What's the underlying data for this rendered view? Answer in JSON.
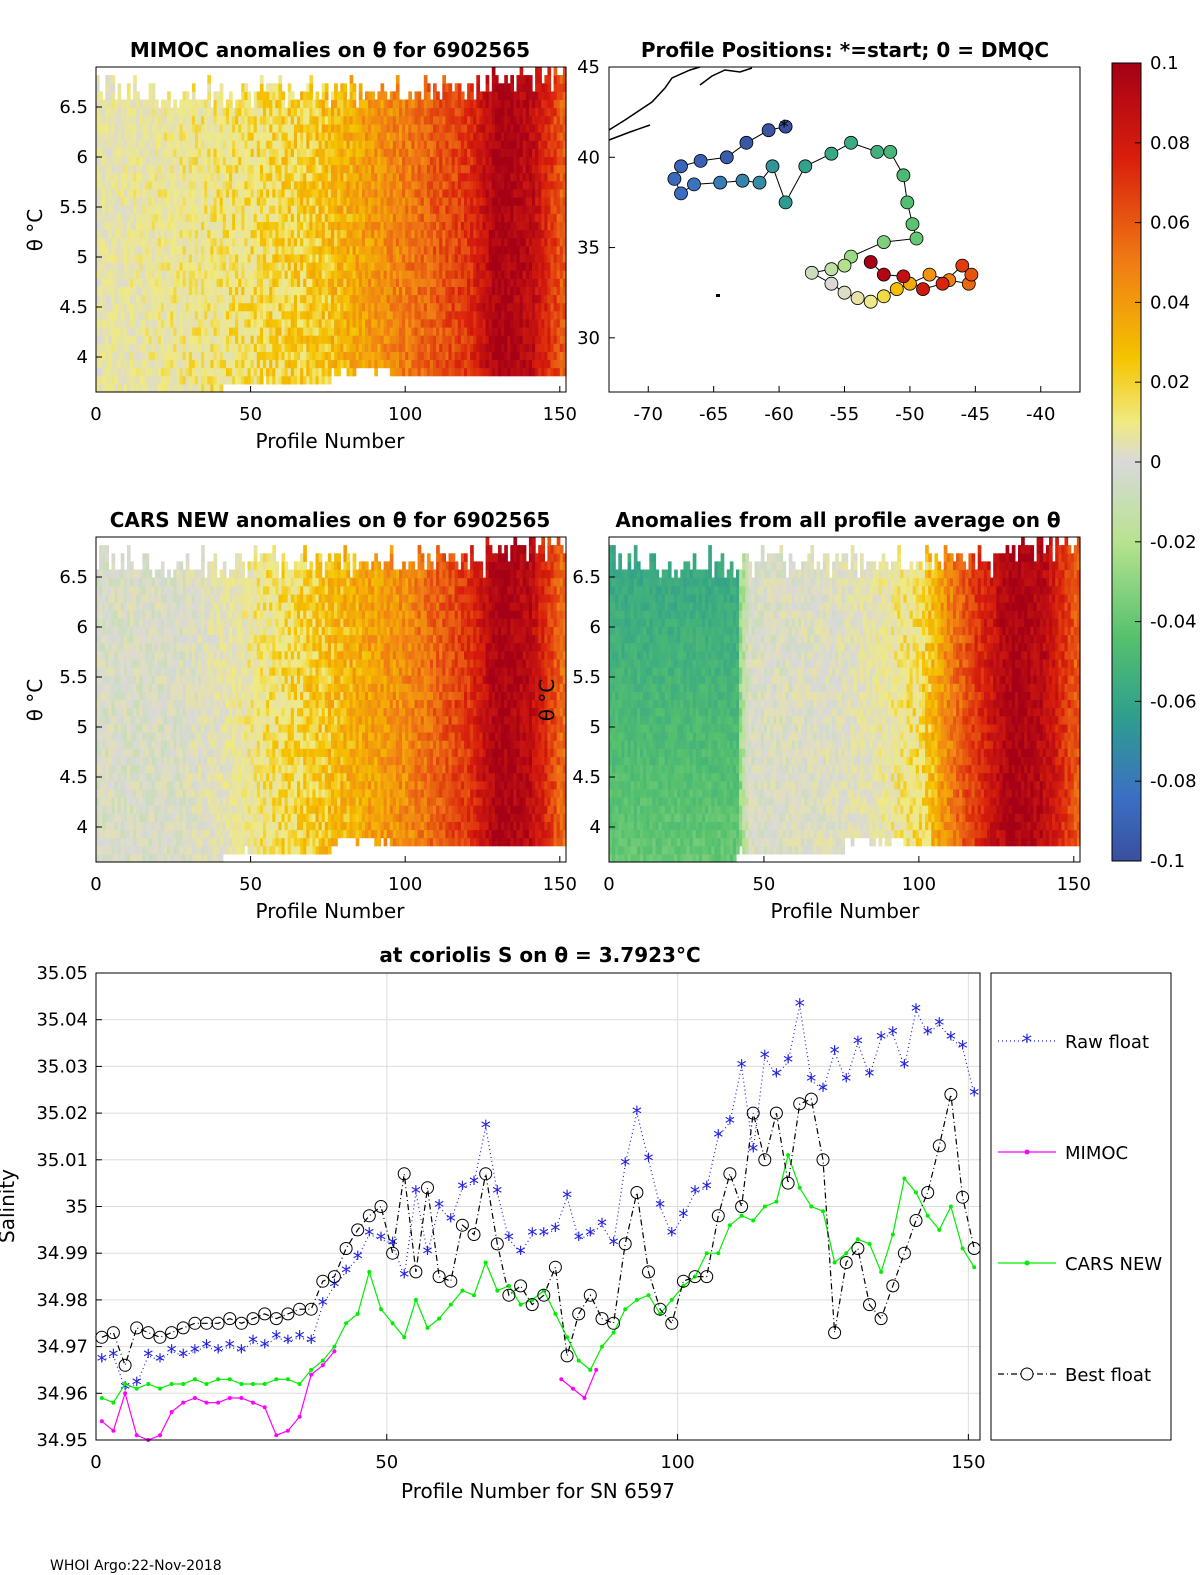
{
  "footer": "WHOI Argo:22-Nov-2018",
  "colorbar": {
    "ticks": [
      "0.1",
      "0.08",
      "0.06",
      "0.04",
      "0.02",
      "0",
      "-0.02",
      "-0.04",
      "-0.06",
      "-0.08",
      "-0.1"
    ],
    "range": [
      -0.1,
      0.1
    ]
  },
  "panels": {
    "mimoc": {
      "title": "MIMOC anomalies on θ  for 6902565",
      "xlabel": "Profile Number",
      "ylabel": "θ °C",
      "xticks": [
        "0",
        "50",
        "100",
        "150"
      ],
      "yticks": [
        "6.5",
        "6",
        "5.5",
        "5",
        "4.5",
        "4"
      ]
    },
    "positions": {
      "title": "Profile Positions: *=start; 0 = DMQC",
      "xticks": [
        "-70",
        "-65",
        "-60",
        "-55",
        "-50",
        "-45",
        "-40"
      ],
      "yticks": [
        "45",
        "40",
        "35",
        "30"
      ]
    },
    "cars": {
      "title": "CARS NEW anomalies on θ for 6902565",
      "xlabel": "Profile Number",
      "ylabel": "θ °C",
      "xticks": [
        "0",
        "50",
        "100",
        "150"
      ],
      "yticks": [
        "6.5",
        "6",
        "5.5",
        "5",
        "4.5",
        "4"
      ]
    },
    "avg": {
      "title": "Anomalies from all profile average on θ",
      "xlabel": "Profile Number",
      "ylabel": "θ °C",
      "xticks": [
        "0",
        "50",
        "100",
        "150"
      ],
      "yticks": [
        "6.5",
        "6",
        "5.5",
        "5",
        "4.5",
        "4"
      ]
    }
  },
  "chart_data": [
    {
      "type": "heatmap",
      "title": "MIMOC anomalies on θ  for 6902565",
      "xlabel": "Profile Number",
      "ylabel": "θ °C",
      "xlim": [
        0,
        152
      ],
      "ylim": [
        3.65,
        6.9
      ],
      "description_trend": "anomaly rises from ~0 near profile 0 to ~0.1 near profiles 125-140",
      "anomaly_by_profile": [
        [
          0,
          0.01
        ],
        [
          25,
          0.015
        ],
        [
          50,
          0.02
        ],
        [
          75,
          0.03
        ],
        [
          100,
          0.05
        ],
        [
          120,
          0.07
        ],
        [
          130,
          0.1
        ],
        [
          140,
          0.09
        ],
        [
          150,
          0.06
        ]
      ]
    },
    {
      "type": "scatter",
      "title": "Profile Positions: *=start; 0 = DMQC",
      "xlim": [
        -73,
        -37
      ],
      "ylim": [
        27,
        45
      ],
      "points_lonlat": [
        [
          -59.5,
          41.7
        ],
        [
          -60.8,
          41.5
        ],
        [
          -62.5,
          40.8
        ],
        [
          -64,
          40
        ],
        [
          -66,
          39.8
        ],
        [
          -67.5,
          39.5
        ],
        [
          -68,
          38.8
        ],
        [
          -67.5,
          38
        ],
        [
          -66.5,
          38.5
        ],
        [
          -64.5,
          38.6
        ],
        [
          -62.8,
          38.7
        ],
        [
          -61.5,
          38.6
        ],
        [
          -60.5,
          39.5
        ],
        [
          -59.5,
          37.5
        ],
        [
          -58,
          39.5
        ],
        [
          -56,
          40.2
        ],
        [
          -54.5,
          40.8
        ],
        [
          -52.5,
          40.3
        ],
        [
          -51.5,
          40.3
        ],
        [
          -50.5,
          39
        ],
        [
          -50.2,
          37.5
        ],
        [
          -49.8,
          36.3
        ],
        [
          -49.5,
          35.5
        ],
        [
          -52,
          35.3
        ],
        [
          -54.5,
          34.5
        ],
        [
          -55,
          34
        ],
        [
          -56,
          33.8
        ],
        [
          -57.5,
          33.6
        ],
        [
          -56,
          33
        ],
        [
          -55,
          32.5
        ],
        [
          -54,
          32.2
        ],
        [
          -53,
          32
        ],
        [
          -52,
          32.3
        ],
        [
          -51,
          32.7
        ],
        [
          -50,
          33
        ],
        [
          -48.5,
          33.5
        ],
        [
          -47,
          33.2
        ],
        [
          -45.5,
          33
        ],
        [
          -45.3,
          33.5
        ],
        [
          -46,
          34
        ],
        [
          -47.5,
          33
        ],
        [
          -49,
          32.7
        ],
        [
          -50.5,
          33.4
        ],
        [
          -52,
          33.5
        ],
        [
          -53,
          34.2
        ]
      ]
    },
    {
      "type": "heatmap",
      "title": "CARS NEW anomalies on θ for 6902565",
      "xlabel": "Profile Number",
      "ylabel": "θ °C",
      "xlim": [
        0,
        152
      ],
      "ylim": [
        3.65,
        6.9
      ],
      "anomaly_by_profile": [
        [
          0,
          0.0
        ],
        [
          25,
          0.0
        ],
        [
          50,
          0.015
        ],
        [
          75,
          0.03
        ],
        [
          100,
          0.045
        ],
        [
          120,
          0.07
        ],
        [
          130,
          0.1
        ],
        [
          140,
          0.09
        ],
        [
          150,
          0.055
        ]
      ]
    },
    {
      "type": "heatmap",
      "title": "Anomalies from all profile average on θ",
      "xlabel": "Profile Number",
      "ylabel": "θ °C",
      "xlim": [
        0,
        152
      ],
      "ylim": [
        3.65,
        6.9
      ],
      "anomaly_by_profile": [
        [
          0,
          -0.06
        ],
        [
          20,
          -0.055
        ],
        [
          40,
          -0.045
        ],
        [
          45,
          0.0
        ],
        [
          75,
          0.005
        ],
        [
          100,
          0.02
        ],
        [
          110,
          0.05
        ],
        [
          130,
          0.1
        ],
        [
          140,
          0.09
        ],
        [
          150,
          0.06
        ]
      ]
    },
    {
      "type": "line",
      "title": "at coriolis S on θ = 3.7923°C",
      "xlabel": "Profile Number for SN 6597",
      "ylabel": "Salinity",
      "xlim": [
        0,
        152
      ],
      "ylim": [
        34.95,
        35.05
      ],
      "xticks": [
        "0",
        "50",
        "100",
        "150"
      ],
      "yticks": [
        "35.05",
        "35.04",
        "35.03",
        "35.02",
        "35.01",
        "35",
        "34.99",
        "34.98",
        "34.97",
        "34.96",
        "34.95"
      ],
      "series": [
        {
          "name": "Raw float",
          "x": [
            1,
            3,
            5,
            7,
            9,
            11,
            13,
            15,
            17,
            19,
            21,
            23,
            25,
            27,
            29,
            31,
            33,
            35,
            37,
            39,
            41,
            43,
            45,
            47,
            49,
            51,
            53,
            55,
            57,
            59,
            61,
            63,
            65,
            67,
            69,
            71,
            73,
            75,
            77,
            79,
            81,
            83,
            85,
            87,
            89,
            91,
            93,
            95,
            97,
            99,
            101,
            103,
            105,
            107,
            109,
            111,
            113,
            115,
            117,
            119,
            121,
            123,
            125,
            127,
            129,
            131,
            133,
            135,
            137,
            139,
            141,
            143,
            145,
            147,
            149,
            151
          ],
          "values": [
            34.967,
            34.968,
            34.961,
            34.962,
            34.968,
            34.967,
            34.969,
            34.968,
            34.969,
            34.97,
            34.969,
            34.97,
            34.969,
            34.971,
            34.97,
            34.972,
            34.971,
            34.972,
            34.971,
            34.979,
            34.983,
            34.986,
            34.989,
            34.994,
            34.993,
            34.992,
            34.985,
            35.003,
            34.99,
            35.0,
            34.997,
            35.004,
            35.005,
            35.017,
            35.003,
            34.993,
            34.99,
            34.994,
            34.994,
            34.995,
            35.002,
            34.993,
            34.994,
            34.996,
            34.992,
            35.009,
            35.02,
            35.01,
            35.0,
            34.994,
            34.998,
            35.003,
            35.004,
            35.015,
            35.018,
            35.03,
            35.012,
            35.032,
            35.028,
            35.031,
            35.043,
            35.027,
            35.025,
            35.033,
            35.027,
            35.035,
            35.028,
            35.036,
            35.037,
            35.03,
            35.042,
            35.037,
            35.039,
            35.036,
            35.034,
            35.024
          ]
        },
        {
          "name": "MIMOC",
          "x": [
            1,
            3,
            5,
            7,
            9,
            11,
            13,
            15,
            17,
            19,
            21,
            23,
            25,
            27,
            29,
            31,
            33,
            35,
            37,
            39,
            41,
            80,
            82,
            84,
            86
          ],
          "values": [
            34.954,
            34.952,
            34.96,
            34.951,
            34.95,
            34.951,
            34.956,
            34.958,
            34.959,
            34.958,
            34.958,
            34.959,
            34.959,
            34.958,
            34.957,
            34.951,
            34.952,
            34.955,
            34.964,
            34.966,
            34.969,
            34.963,
            34.961,
            34.959,
            34.965
          ]
        },
        {
          "name": "CARS NEW",
          "x": [
            1,
            3,
            5,
            7,
            9,
            11,
            13,
            15,
            17,
            19,
            21,
            23,
            25,
            27,
            29,
            31,
            33,
            35,
            37,
            39,
            41,
            43,
            45,
            47,
            49,
            51,
            53,
            55,
            57,
            59,
            61,
            63,
            65,
            67,
            69,
            71,
            73,
            75,
            77,
            79,
            81,
            83,
            85,
            87,
            89,
            91,
            93,
            95,
            97,
            99,
            101,
            103,
            105,
            107,
            109,
            111,
            113,
            115,
            117,
            119,
            121,
            123,
            125,
            127,
            129,
            131,
            133,
            135,
            137,
            139,
            141,
            143,
            145,
            147,
            149,
            151
          ],
          "values": [
            34.959,
            34.958,
            34.962,
            34.961,
            34.962,
            34.961,
            34.962,
            34.962,
            34.963,
            34.962,
            34.963,
            34.963,
            34.962,
            34.962,
            34.962,
            34.963,
            34.963,
            34.962,
            34.965,
            34.967,
            34.97,
            34.975,
            34.977,
            34.986,
            34.978,
            34.975,
            34.972,
            34.98,
            34.974,
            34.976,
            34.979,
            34.982,
            34.981,
            34.988,
            34.982,
            34.983,
            34.979,
            34.98,
            34.982,
            34.977,
            34.972,
            34.967,
            34.965,
            34.97,
            34.973,
            34.978,
            34.98,
            34.981,
            34.977,
            34.98,
            34.983,
            34.985,
            34.99,
            34.99,
            34.996,
            34.998,
            34.997,
            35.0,
            35.001,
            35.011,
            35.004,
            35.0,
            34.999,
            34.988,
            34.99,
            34.993,
            34.992,
            34.986,
            34.994,
            35.006,
            35.003,
            34.998,
            34.995,
            35.0,
            34.991,
            34.987
          ]
        },
        {
          "name": "Best float",
          "x": [
            1,
            3,
            5,
            7,
            9,
            11,
            13,
            15,
            17,
            19,
            21,
            23,
            25,
            27,
            29,
            31,
            33,
            35,
            37,
            39,
            41,
            43,
            45,
            47,
            49,
            51,
            53,
            55,
            57,
            59,
            61,
            63,
            65,
            67,
            69,
            71,
            73,
            75,
            77,
            79,
            81,
            83,
            85,
            87,
            89,
            91,
            93,
            95,
            97,
            99,
            101,
            103,
            105,
            107,
            109,
            111,
            113,
            115,
            117,
            119,
            121,
            123,
            125,
            127,
            129,
            131,
            133,
            135,
            137,
            139,
            141,
            143,
            145,
            147,
            149,
            151
          ],
          "values": [
            34.972,
            34.973,
            34.966,
            34.974,
            34.973,
            34.972,
            34.973,
            34.974,
            34.975,
            34.975,
            34.975,
            34.976,
            34.975,
            34.976,
            34.977,
            34.976,
            34.977,
            34.978,
            34.978,
            34.984,
            34.985,
            34.991,
            34.995,
            34.998,
            35.0,
            34.99,
            35.007,
            34.986,
            35.004,
            34.985,
            34.984,
            34.996,
            34.994,
            35.007,
            34.992,
            34.981,
            34.983,
            34.979,
            34.981,
            34.987,
            34.968,
            34.977,
            34.981,
            34.976,
            34.975,
            34.992,
            35.003,
            34.986,
            34.978,
            34.975,
            34.984,
            34.985,
            34.985,
            34.998,
            35.007,
            35.0,
            35.02,
            35.01,
            35.02,
            35.005,
            35.022,
            35.023,
            35.01,
            34.973,
            34.988,
            34.991,
            34.979,
            34.976,
            34.983,
            34.99,
            34.997,
            35.003,
            35.013,
            35.024,
            35.002,
            34.991
          ]
        }
      ]
    }
  ]
}
